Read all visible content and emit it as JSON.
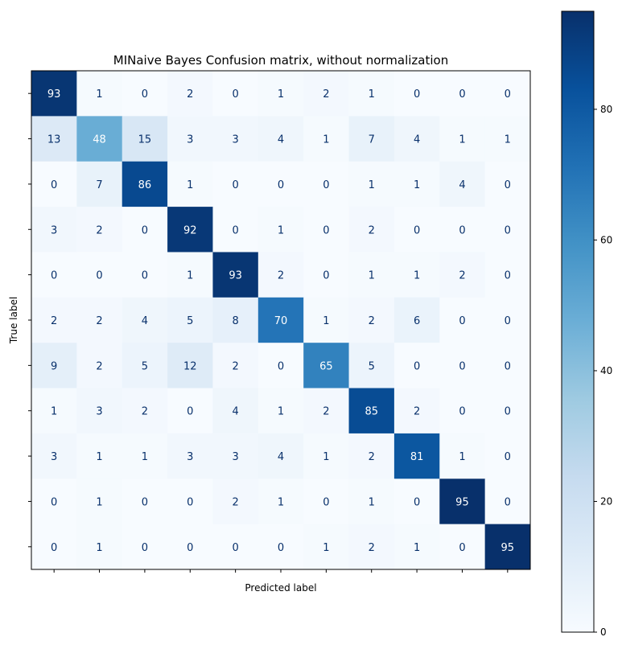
{
  "chart_data": {
    "type": "heatmap",
    "title": "MINaive Bayes Confusion matrix, without normalization",
    "xlabel": "Predicted label",
    "ylabel": "True label",
    "matrix": [
      [
        93,
        1,
        0,
        2,
        0,
        1,
        2,
        1,
        0,
        0,
        0
      ],
      [
        13,
        48,
        15,
        3,
        3,
        4,
        1,
        7,
        4,
        1,
        1
      ],
      [
        0,
        7,
        86,
        1,
        0,
        0,
        0,
        1,
        1,
        4,
        0
      ],
      [
        3,
        2,
        0,
        92,
        0,
        1,
        0,
        2,
        0,
        0,
        0
      ],
      [
        0,
        0,
        0,
        1,
        93,
        2,
        0,
        1,
        1,
        2,
        0
      ],
      [
        2,
        2,
        4,
        5,
        8,
        70,
        1,
        2,
        6,
        0,
        0
      ],
      [
        9,
        2,
        5,
        12,
        2,
        0,
        65,
        5,
        0,
        0,
        0
      ],
      [
        1,
        3,
        2,
        0,
        4,
        1,
        2,
        85,
        2,
        0,
        0
      ],
      [
        3,
        1,
        1,
        3,
        3,
        4,
        1,
        2,
        81,
        1,
        0
      ],
      [
        0,
        1,
        0,
        0,
        2,
        1,
        0,
        1,
        0,
        95,
        0
      ],
      [
        0,
        1,
        0,
        0,
        0,
        0,
        1,
        2,
        1,
        0,
        95
      ]
    ],
    "colormap": "Blues",
    "color_range": [
      0,
      95
    ],
    "colorbar": {
      "ticks": [
        0,
        20,
        40,
        60,
        80
      ],
      "tick_labels": [
        "0",
        "20",
        "40",
        "60",
        "80"
      ]
    },
    "grid": false
  }
}
